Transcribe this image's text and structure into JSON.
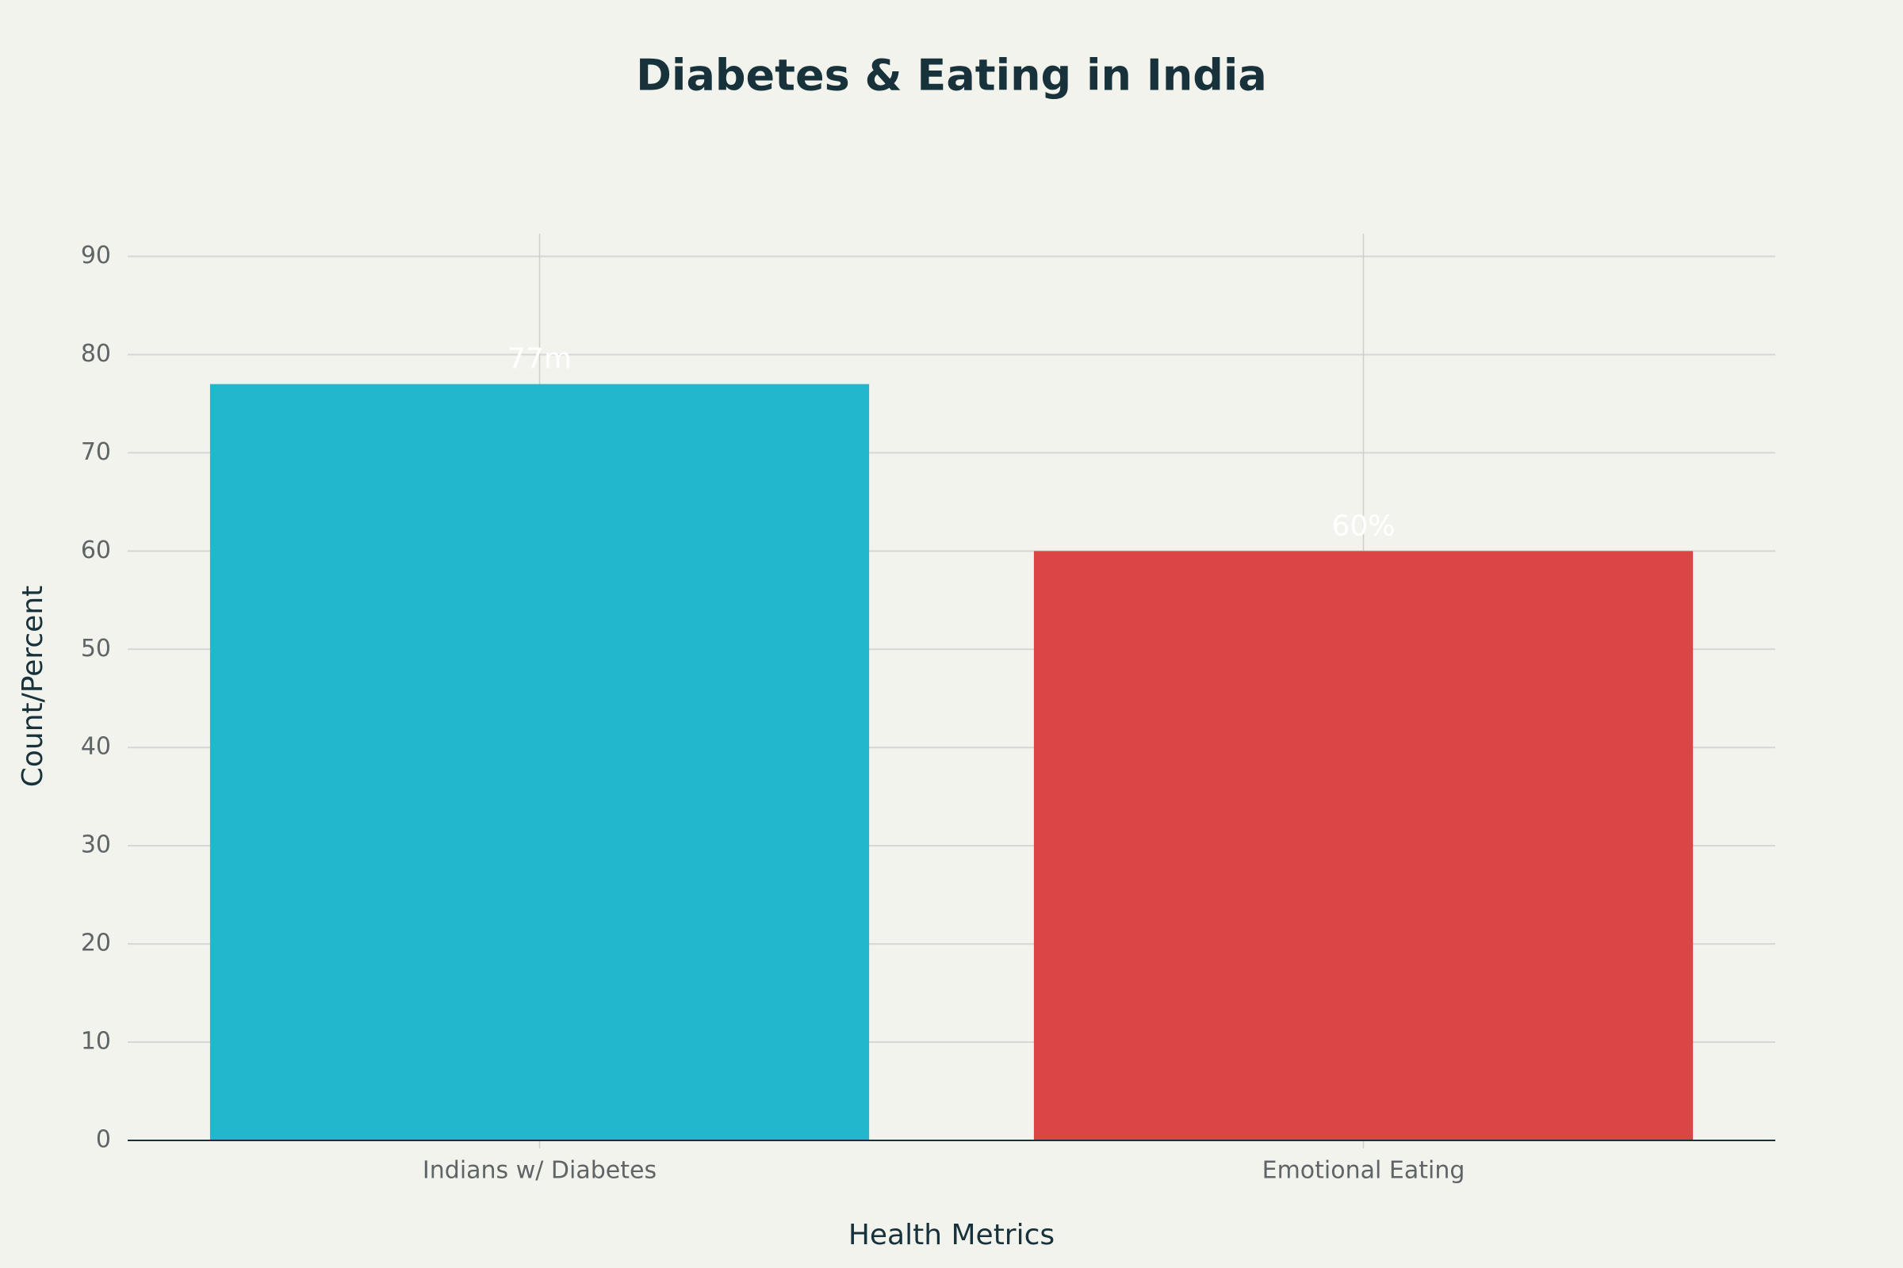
{
  "chart_data": {
    "type": "bar",
    "title": "Diabetes & Eating in India",
    "x_label": "Health Metrics",
    "y_label": "Count/Percent",
    "categories": [
      "Indians w/ Diabetes",
      "Emotional Eating"
    ],
    "values": [
      77,
      60
    ],
    "value_labels": [
      "77m",
      "60%"
    ],
    "colors": [
      "#21b7cc",
      "#db4546"
    ],
    "ylim": [
      0,
      92.3
    ],
    "yticks": [
      0,
      10,
      20,
      30,
      40,
      50,
      60,
      70,
      80,
      90
    ],
    "grid": true
  }
}
